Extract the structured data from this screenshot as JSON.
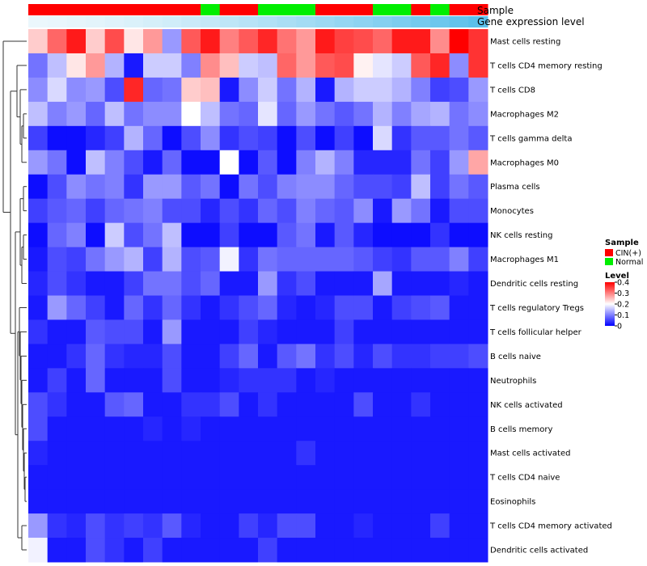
{
  "chart_data": {
    "type": "heatmap",
    "annotations": {
      "sample_label": "Sample",
      "gene_label": "Gene expression level",
      "sample_groups": [
        "CIN(+)",
        "CIN(+)",
        "CIN(+)",
        "CIN(+)",
        "CIN(+)",
        "CIN(+)",
        "CIN(+)",
        "CIN(+)",
        "CIN(+)",
        "Normal",
        "CIN(+)",
        "CIN(+)",
        "Normal",
        "Normal",
        "Normal",
        "CIN(+)",
        "CIN(+)",
        "CIN(+)",
        "Normal",
        "Normal",
        "CIN(+)",
        "Normal",
        "CIN(+)",
        "CIN(+)"
      ],
      "group_colors": {
        "CIN(+)": "#ff0000",
        "Normal": "#00ee00"
      },
      "gene_bar_color": "#5bc0eb"
    },
    "rows": [
      "Mast cells resting",
      "T cells CD4 memory resting",
      "T cells CD8",
      "Macrophages M2",
      "T cells gamma delta",
      "Macrophages M0",
      "Plasma cells",
      "Monocytes",
      "NK cells resting",
      "Macrophages M1",
      "Dendritic cells resting",
      "T cells regulatory  Tregs",
      "T cells follicular helper",
      "B cells naive",
      "Neutrophils",
      "NK cells activated",
      "B cells memory",
      "Mast cells activated",
      "T cells CD4 naive",
      "Eosinophils",
      "T cells CD4 memory activated",
      "Dendritic cells activated"
    ],
    "values": [
      [
        0.24,
        0.32,
        0.38,
        0.24,
        0.34,
        0.22,
        0.28,
        0.12,
        0.33,
        0.38,
        0.3,
        0.33,
        0.37,
        0.31,
        0.28,
        0.38,
        0.35,
        0.34,
        0.32,
        0.38,
        0.38,
        0.29,
        0.4,
        0.36
      ],
      [
        0.09,
        0.15,
        0.22,
        0.28,
        0.14,
        0.02,
        0.16,
        0.16,
        0.1,
        0.29,
        0.25,
        0.16,
        0.15,
        0.32,
        0.28,
        0.33,
        0.34,
        0.21,
        0.18,
        0.16,
        0.33,
        0.37,
        0.11,
        0.36
      ],
      [
        0.11,
        0.17,
        0.11,
        0.12,
        0.06,
        0.37,
        0.08,
        0.09,
        0.24,
        0.25,
        0.02,
        0.11,
        0.16,
        0.09,
        0.14,
        0.02,
        0.14,
        0.16,
        0.16,
        0.14,
        0.1,
        0.05,
        0.06,
        0.12
      ],
      [
        0.15,
        0.1,
        0.12,
        0.08,
        0.15,
        0.09,
        0.11,
        0.11,
        0.2,
        0.15,
        0.09,
        0.08,
        0.18,
        0.08,
        0.12,
        0.09,
        0.07,
        0.09,
        0.14,
        0.1,
        0.13,
        0.14,
        0.09,
        0.11
      ],
      [
        0.05,
        0.01,
        0.01,
        0.03,
        0.05,
        0.14,
        0.08,
        0.01,
        0.06,
        0.11,
        0.04,
        0.06,
        0.05,
        0.01,
        0.06,
        0.01,
        0.05,
        0.01,
        0.17,
        0.04,
        0.07,
        0.07,
        0.09,
        0.07
      ],
      [
        0.12,
        0.09,
        0.01,
        0.15,
        0.1,
        0.06,
        0.02,
        0.08,
        0.01,
        0.01,
        0.2,
        0.01,
        0.07,
        0.01,
        0.1,
        0.14,
        0.1,
        0.03,
        0.03,
        0.03,
        0.09,
        0.05,
        0.12,
        0.27
      ],
      [
        0.01,
        0.06,
        0.11,
        0.09,
        0.1,
        0.04,
        0.12,
        0.12,
        0.07,
        0.09,
        0.01,
        0.09,
        0.06,
        0.1,
        0.11,
        0.11,
        0.08,
        0.06,
        0.06,
        0.05,
        0.15,
        0.05,
        0.09,
        0.07
      ],
      [
        0.05,
        0.07,
        0.08,
        0.05,
        0.08,
        0.09,
        0.1,
        0.06,
        0.06,
        0.03,
        0.06,
        0.04,
        0.08,
        0.06,
        0.1,
        0.08,
        0.07,
        0.11,
        0.02,
        0.12,
        0.09,
        0.02,
        0.06,
        0.06
      ],
      [
        0.01,
        0.08,
        0.1,
        0.01,
        0.16,
        0.06,
        0.09,
        0.15,
        0.01,
        0.01,
        0.05,
        0.01,
        0.01,
        0.07,
        0.09,
        0.02,
        0.07,
        0.03,
        0.01,
        0.01,
        0.01,
        0.04,
        0.01,
        0.01
      ],
      [
        0.02,
        0.06,
        0.05,
        0.09,
        0.12,
        0.14,
        0.05,
        0.14,
        0.06,
        0.07,
        0.19,
        0.04,
        0.09,
        0.08,
        0.08,
        0.08,
        0.08,
        0.07,
        0.05,
        0.04,
        0.07,
        0.07,
        0.1,
        0.05
      ],
      [
        0.03,
        0.06,
        0.04,
        0.02,
        0.02,
        0.05,
        0.09,
        0.09,
        0.06,
        0.08,
        0.02,
        0.02,
        0.12,
        0.04,
        0.06,
        0.02,
        0.02,
        0.02,
        0.13,
        0.02,
        0.02,
        0.02,
        0.03,
        0.02
      ],
      [
        0.02,
        0.12,
        0.08,
        0.05,
        0.02,
        0.08,
        0.04,
        0.08,
        0.04,
        0.02,
        0.04,
        0.06,
        0.08,
        0.03,
        0.02,
        0.03,
        0.06,
        0.06,
        0.02,
        0.05,
        0.06,
        0.07,
        0.02,
        0.02
      ],
      [
        0.04,
        0.02,
        0.02,
        0.07,
        0.06,
        0.06,
        0.02,
        0.12,
        0.02,
        0.02,
        0.02,
        0.05,
        0.03,
        0.02,
        0.02,
        0.02,
        0.05,
        0.02,
        0.02,
        0.02,
        0.02,
        0.02,
        0.02,
        0.02
      ],
      [
        0.02,
        0.02,
        0.04,
        0.08,
        0.04,
        0.03,
        0.03,
        0.06,
        0.02,
        0.02,
        0.05,
        0.08,
        0.02,
        0.07,
        0.09,
        0.04,
        0.06,
        0.03,
        0.06,
        0.04,
        0.04,
        0.05,
        0.05,
        0.06
      ],
      [
        0.02,
        0.05,
        0.02,
        0.08,
        0.02,
        0.02,
        0.02,
        0.06,
        0.02,
        0.02,
        0.03,
        0.04,
        0.04,
        0.04,
        0.02,
        0.03,
        0.02,
        0.02,
        0.02,
        0.02,
        0.02,
        0.02,
        0.02,
        0.02
      ],
      [
        0.06,
        0.04,
        0.02,
        0.02,
        0.07,
        0.08,
        0.02,
        0.02,
        0.04,
        0.04,
        0.06,
        0.02,
        0.04,
        0.02,
        0.02,
        0.02,
        0.02,
        0.06,
        0.02,
        0.02,
        0.04,
        0.02,
        0.02,
        0.02
      ],
      [
        0.06,
        0.02,
        0.02,
        0.02,
        0.02,
        0.02,
        0.03,
        0.02,
        0.03,
        0.02,
        0.02,
        0.02,
        0.02,
        0.02,
        0.02,
        0.02,
        0.02,
        0.02,
        0.02,
        0.02,
        0.02,
        0.02,
        0.02,
        0.02
      ],
      [
        0.03,
        0.02,
        0.02,
        0.02,
        0.02,
        0.02,
        0.02,
        0.02,
        0.02,
        0.02,
        0.02,
        0.02,
        0.02,
        0.02,
        0.04,
        0.02,
        0.02,
        0.02,
        0.02,
        0.02,
        0.02,
        0.02,
        0.02,
        0.02
      ],
      [
        0.02,
        0.02,
        0.02,
        0.02,
        0.02,
        0.02,
        0.02,
        0.02,
        0.02,
        0.02,
        0.02,
        0.02,
        0.02,
        0.02,
        0.02,
        0.02,
        0.02,
        0.02,
        0.02,
        0.02,
        0.02,
        0.02,
        0.02,
        0.02
      ],
      [
        0.02,
        0.02,
        0.02,
        0.02,
        0.02,
        0.02,
        0.02,
        0.02,
        0.02,
        0.02,
        0.02,
        0.02,
        0.02,
        0.02,
        0.02,
        0.02,
        0.02,
        0.02,
        0.02,
        0.02,
        0.02,
        0.02,
        0.02,
        0.02
      ],
      [
        0.12,
        0.04,
        0.03,
        0.06,
        0.04,
        0.05,
        0.04,
        0.07,
        0.03,
        0.02,
        0.02,
        0.05,
        0.03,
        0.06,
        0.06,
        0.02,
        0.02,
        0.03,
        0.02,
        0.02,
        0.02,
        0.05,
        0.02,
        0.02
      ],
      [
        0.19,
        0.02,
        0.02,
        0.06,
        0.04,
        0.02,
        0.05,
        0.02,
        0.02,
        0.02,
        0.02,
        0.02,
        0.05,
        0.02,
        0.02,
        0.02,
        0.02,
        0.02,
        0.02,
        0.02,
        0.02,
        0.02,
        0.02,
        0.02
      ]
    ],
    "color_scale": {
      "min": 0,
      "mid": 0.2,
      "max": 0.4,
      "low": "#0000ff",
      "midColor": "#ffffff",
      "high": "#ff0000"
    },
    "legend": {
      "sample_title": "Sample",
      "sample_items": [
        "CIN(+)",
        "Normal"
      ],
      "level_title": "Level",
      "level_ticks": [
        "0.4",
        "0.3",
        "0.2",
        "0.1",
        "0"
      ],
      "level_tick_values": [
        0.4,
        0.3,
        0.2,
        0.1,
        0
      ]
    },
    "xlabel": "",
    "ylabel": ""
  }
}
